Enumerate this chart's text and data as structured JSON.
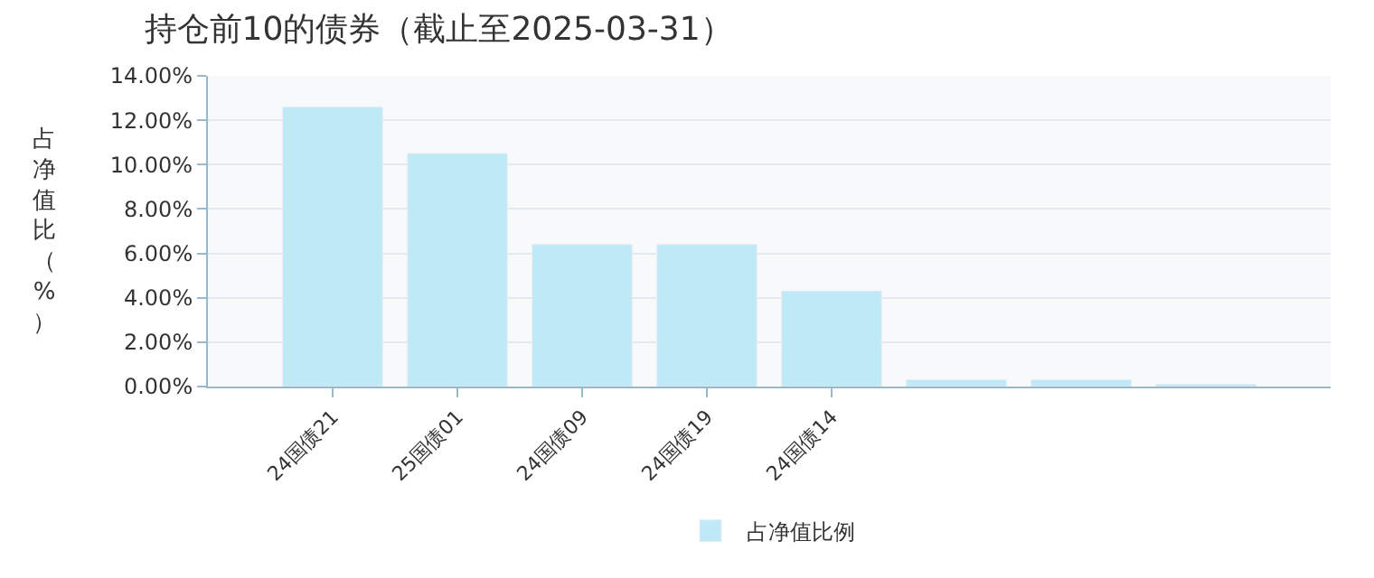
{
  "chart_data": {
    "type": "bar",
    "title": "持仓前10的债券（截止至2025-03-31）",
    "ylabel": "占净值比（%）",
    "categories": [
      "24国债21",
      "25国债01",
      "24国债09",
      "24国债19",
      "24国债14",
      null,
      null,
      null
    ],
    "series": [
      {
        "name": "占净值比例",
        "color": "#bfe9f6",
        "values": [
          12.6,
          10.5,
          6.4,
          6.4,
          4.3,
          0.3,
          0.3,
          0.1
        ]
      }
    ],
    "ylim": [
      0,
      14
    ],
    "yticks": [
      {
        "value": 0,
        "label": "0.00%"
      },
      {
        "value": 2,
        "label": "2.00%"
      },
      {
        "value": 4,
        "label": "4.00%"
      },
      {
        "value": 6,
        "label": "6.00%"
      },
      {
        "value": 8,
        "label": "8.00%"
      },
      {
        "value": 10,
        "label": "10.00%"
      },
      {
        "value": 12,
        "label": "12.00%"
      },
      {
        "value": 14,
        "label": "14.00%"
      }
    ],
    "grid": "y",
    "legend": "bottom"
  }
}
